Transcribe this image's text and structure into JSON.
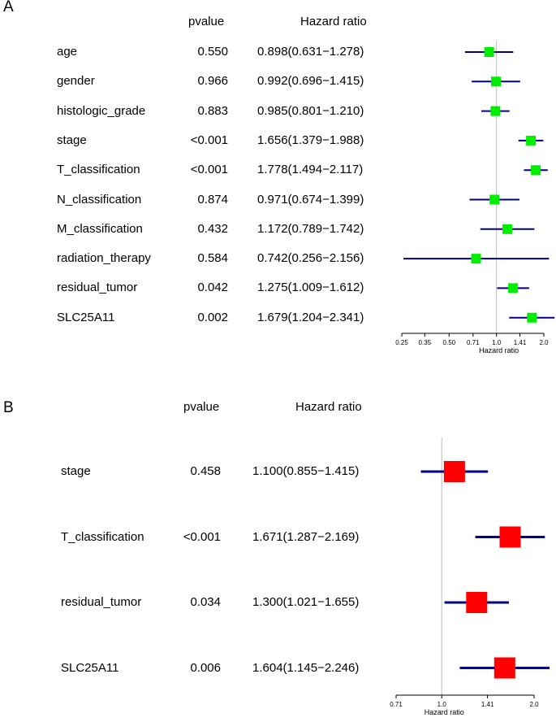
{
  "chart_data": [
    {
      "type": "forest",
      "panel_label": "A",
      "columns": {
        "pvalue": "pvalue",
        "hazard_ratio": "Hazard ratio"
      },
      "xlabel": "Hazard ratio",
      "x_scale": "log",
      "ticks": [
        "0.25",
        "0.35",
        "0.50",
        "0.71",
        "1.0",
        "1.41",
        "2.0"
      ],
      "xlim": [
        0.25,
        2.0
      ],
      "reference_line": 1.0,
      "marker_color": "#00ee00",
      "ci_color": "#00008b",
      "rows": [
        {
          "label": "age",
          "pvalue": "0.550",
          "hr_text": "0.898(0.631−1.278)",
          "hr": 0.898,
          "lo": 0.631,
          "hi": 1.278
        },
        {
          "label": "gender",
          "pvalue": "0.966",
          "hr_text": "0.992(0.696−1.415)",
          "hr": 0.992,
          "lo": 0.696,
          "hi": 1.415
        },
        {
          "label": "histologic_grade",
          "pvalue": "0.883",
          "hr_text": "0.985(0.801−1.210)",
          "hr": 0.985,
          "lo": 0.801,
          "hi": 1.21
        },
        {
          "label": "stage",
          "pvalue": "<0.001",
          "hr_text": "1.656(1.379−1.988)",
          "hr": 1.656,
          "lo": 1.379,
          "hi": 1.988
        },
        {
          "label": "T_classification",
          "pvalue": "<0.001",
          "hr_text": "1.778(1.494−2.117)",
          "hr": 1.778,
          "lo": 1.494,
          "hi": 2.117
        },
        {
          "label": "N_classification",
          "pvalue": "0.874",
          "hr_text": "0.971(0.674−1.399)",
          "hr": 0.971,
          "lo": 0.674,
          "hi": 1.399
        },
        {
          "label": "M_classification",
          "pvalue": "0.432",
          "hr_text": "1.172(0.789−1.742)",
          "hr": 1.172,
          "lo": 0.789,
          "hi": 1.742
        },
        {
          "label": "radiation_therapy",
          "pvalue": "0.584",
          "hr_text": "0.742(0.256−2.156)",
          "hr": 0.742,
          "lo": 0.256,
          "hi": 2.156
        },
        {
          "label": "residual_tumor",
          "pvalue": "0.042",
          "hr_text": "1.275(1.009−1.612)",
          "hr": 1.275,
          "lo": 1.009,
          "hi": 1.612
        },
        {
          "label": "SLC25A11",
          "pvalue": "0.002",
          "hr_text": "1.679(1.204−2.341)",
          "hr": 1.679,
          "lo": 1.204,
          "hi": 2.341
        }
      ]
    },
    {
      "type": "forest",
      "panel_label": "B",
      "columns": {
        "pvalue": "pvalue",
        "hazard_ratio": "Hazard ratio"
      },
      "xlabel": "Hazard ratio",
      "x_scale": "log",
      "ticks": [
        "0.71",
        "1.0",
        "1.41",
        "2.0"
      ],
      "xlim": [
        0.71,
        2.0
      ],
      "reference_line": 1.0,
      "marker_color": "#ff0000",
      "ci_color": "#00008b",
      "rows": [
        {
          "label": "stage",
          "pvalue": "0.458",
          "hr_text": "1.100(0.855−1.415)",
          "hr": 1.1,
          "lo": 0.855,
          "hi": 1.415
        },
        {
          "label": "T_classification",
          "pvalue": "<0.001",
          "hr_text": "1.671(1.287−2.169)",
          "hr": 1.671,
          "lo": 1.287,
          "hi": 2.169
        },
        {
          "label": "residual_tumor",
          "pvalue": "0.034",
          "hr_text": "1.300(1.021−1.655)",
          "hr": 1.3,
          "lo": 1.021,
          "hi": 1.655
        },
        {
          "label": "SLC25A11",
          "pvalue": "0.006",
          "hr_text": "1.604(1.145−2.246)",
          "hr": 1.604,
          "lo": 1.145,
          "hi": 2.246
        }
      ]
    }
  ]
}
